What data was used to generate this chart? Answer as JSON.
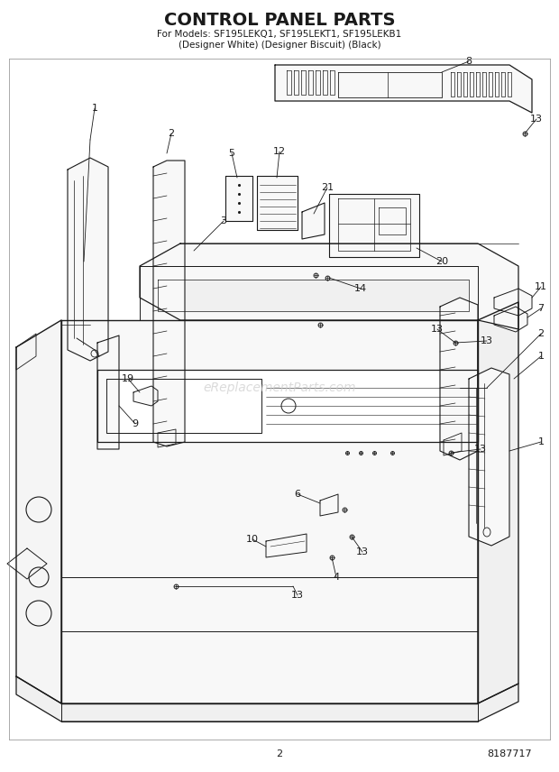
{
  "title": "CONTROL PANEL PARTS",
  "subtitle_line1": "For Models: SF195LEKQ1, SF195LEKT1, SF195LEKB1",
  "subtitle_line2": "(Designer White) (Designer Biscuit) (Black)",
  "page_number": "2",
  "part_number": "8187717",
  "watermark": "eReplacementParts.com",
  "bg_color": "#ffffff",
  "line_color": "#1a1a1a",
  "title_fontsize": 14,
  "subtitle_fontsize": 7.5,
  "label_fontsize": 8,
  "footer_fontsize": 8,
  "watermark_fontsize": 10
}
